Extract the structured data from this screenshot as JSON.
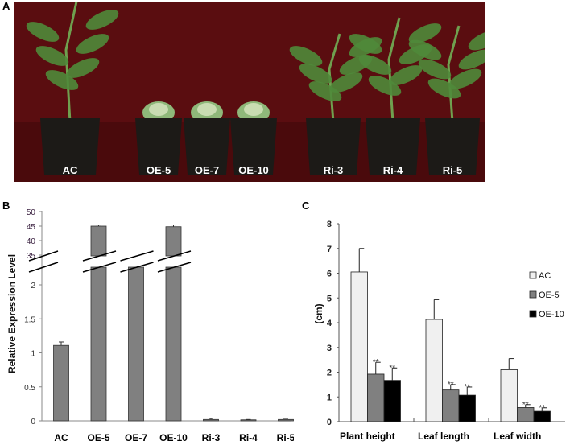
{
  "panels": {
    "a": "A",
    "b": "B",
    "c": "C"
  },
  "photo": {
    "labels": [
      "AC",
      "OE-5",
      "OE-7",
      "OE-10",
      "Ri-3",
      "Ri-4",
      "Ri-5"
    ],
    "colors": {
      "background": "#5a0d10",
      "pot": "#1c1a17",
      "leaf": "#4f8a3a"
    }
  },
  "chart_data": [
    {
      "type": "bar",
      "panel": "B",
      "ylabel": "Relative Expression Level",
      "categories": [
        "AC",
        "OE-5",
        "OE-7",
        "OE-10",
        "Ri-3",
        "Ri-4",
        "Ri-5"
      ],
      "values": [
        1.11,
        45.0,
        null,
        44.8,
        0.02,
        0.015,
        0.02
      ],
      "errors": [
        0.05,
        0.4,
        null,
        0.6,
        0.015,
        0.005,
        0.005
      ],
      "broken_axis": true,
      "lower_ticks": [
        "0",
        "0.5",
        "1",
        "1.5",
        "2"
      ],
      "upper_ticks": [
        "35",
        "40",
        "45",
        "50"
      ],
      "lower_ylim": [
        0,
        2.3
      ],
      "upper_ylim": [
        35,
        50
      ],
      "bar_color": "#808080",
      "grid": false
    },
    {
      "type": "bar",
      "panel": "C",
      "ylabel": "(cm)",
      "categories": [
        "Plant height",
        "Leaf length",
        "Leaf width"
      ],
      "ylim": [
        0,
        8
      ],
      "yticks": [
        "0",
        "1",
        "2",
        "3",
        "4",
        "5",
        "6",
        "7",
        "8"
      ],
      "series": [
        {
          "name": "AC",
          "color": "#f0f0f0",
          "values": [
            6.05,
            4.13,
            2.1
          ],
          "errors": [
            0.95,
            0.8,
            0.45
          ],
          "marks": [
            "",
            "",
            ""
          ]
        },
        {
          "name": "OE-5",
          "color": "#808080",
          "values": [
            1.92,
            1.28,
            0.57
          ],
          "errors": [
            0.48,
            0.22,
            0.12
          ],
          "marks": [
            "**",
            "**",
            "**"
          ]
        },
        {
          "name": "OE-10",
          "color": "#000000",
          "values": [
            1.67,
            1.07,
            0.42
          ],
          "errors": [
            0.5,
            0.33,
            0.14
          ],
          "marks": [
            "**",
            "**",
            "**"
          ]
        }
      ],
      "legend": "right",
      "grid": false
    }
  ]
}
